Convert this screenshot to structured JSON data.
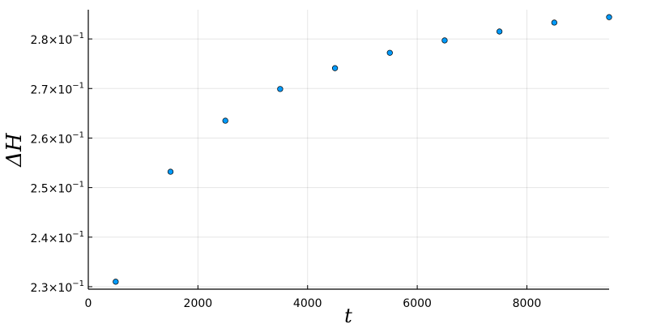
{
  "chart_data": {
    "type": "scatter",
    "title": "",
    "xlabel": "t",
    "ylabel": "ΔH",
    "xlim": [
      0,
      9500
    ],
    "ylim": [
      0.2295,
      0.2859
    ],
    "x_ticks": [
      0,
      2000,
      4000,
      6000,
      8000
    ],
    "x_tick_labels": [
      "0",
      "2000",
      "4000",
      "6000",
      "8000"
    ],
    "y_ticks": [
      0.23,
      0.24,
      0.25,
      0.26,
      0.27,
      0.28
    ],
    "y_tick_labels": [
      {
        "mantissa": "2.3",
        "exp": "−1"
      },
      {
        "mantissa": "2.4",
        "exp": "−1"
      },
      {
        "mantissa": "2.5",
        "exp": "−1"
      },
      {
        "mantissa": "2.6",
        "exp": "−1"
      },
      {
        "mantissa": "2.7",
        "exp": "−1"
      },
      {
        "mantissa": "2.8",
        "exp": "−1"
      }
    ],
    "grid": true,
    "legend": "none",
    "marker_color": "#009AFA",
    "x": [
      500,
      1500,
      2500,
      3500,
      4500,
      5500,
      6500,
      7500,
      8500,
      9500
    ],
    "y": [
      0.231,
      0.2532,
      0.2635,
      0.2699,
      0.2741,
      0.2772,
      0.2797,
      0.2815,
      0.2833,
      0.2844
    ]
  }
}
